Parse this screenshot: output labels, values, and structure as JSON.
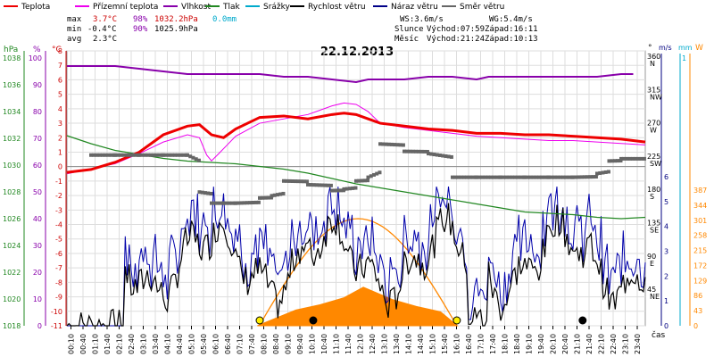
{
  "chart_data": {
    "type": "line",
    "title": "22.12.2013",
    "legend": [
      {
        "label": "Teplota",
        "color": "#ee0000"
      },
      {
        "label": "Přízemní teplota",
        "color": "#ee00ee"
      },
      {
        "label": "Vlhkost",
        "color": "#8800aa"
      },
      {
        "label": "Tlak",
        "color": "#228822"
      },
      {
        "label": "Srážky",
        "color": "#00aacc"
      },
      {
        "label": "Rychlost větru",
        "color": "#000000"
      },
      {
        "label": "Náraz větru",
        "color": "#000088"
      },
      {
        "label": "Směr větru",
        "color": "#666666"
      }
    ],
    "stats": {
      "max_label": "max",
      "min_label": "min",
      "avg_label": "avg",
      "max_temp": "3.7°C",
      "min_temp": "-0.4°C",
      "avg_temp": "2.3°C",
      "max_hum": "98%",
      "min_hum": "90%",
      "max_press": "1032.2hPa",
      "min_press": "1025.9hPa",
      "rain": "0.0mm"
    },
    "info": {
      "ws": "WS:3.6m/s",
      "wg": "WG:5.4m/s",
      "sun_label": "Slunce",
      "sunrise": "Východ:07:59",
      "sunset": "Západ:16:11",
      "moon_label": "Měsíc",
      "moonrise": "Východ:21:24",
      "moonset": "Západ:10:13"
    },
    "axis_units": {
      "hpa": "hPa",
      "pct": "%",
      "degc": "°C",
      "deg": "°",
      "ms": "m/s",
      "mm": "mm",
      "w": "W",
      "time": "čas"
    },
    "axes": {
      "pressure_ticks": [
        1018,
        1020,
        1022,
        1024,
        1026,
        1028,
        1030,
        1032,
        1034,
        1036,
        1038
      ],
      "humidity_ticks": [
        0,
        10,
        20,
        30,
        40,
        50,
        60,
        70,
        80,
        90,
        100
      ],
      "temp_ticks": [
        -11,
        -10,
        -9,
        -8,
        -7,
        -6,
        -5,
        -4,
        -3,
        -2,
        -1,
        0,
        1,
        2,
        3,
        4,
        5,
        6,
        7,
        8
      ],
      "direction_ticks": [
        {
          "deg": "360",
          "dir": "N"
        },
        {
          "deg": "315",
          "dir": "NW"
        },
        {
          "deg": "270",
          "dir": "W"
        },
        {
          "deg": "225",
          "dir": "SW"
        },
        {
          "deg": "180",
          "dir": "S"
        },
        {
          "deg": "135",
          "dir": "SE"
        },
        {
          "deg": "90",
          "dir": "E"
        },
        {
          "deg": "45",
          "dir": "NE"
        }
      ],
      "wind_ticks": [
        0,
        1,
        2,
        3,
        4,
        5,
        6
      ],
      "rain_top": "1",
      "solar_ticks": [
        0,
        43,
        86,
        129,
        172,
        215,
        258,
        301,
        344,
        387
      ],
      "time_ticks": [
        "00:10",
        "00:40",
        "01:10",
        "01:40",
        "02:10",
        "02:40",
        "03:10",
        "03:40",
        "04:10",
        "04:40",
        "05:10",
        "05:40",
        "06:10",
        "06:40",
        "07:10",
        "07:40",
        "08:10",
        "08:40",
        "09:10",
        "09:40",
        "10:10",
        "10:40",
        "11:10",
        "11:40",
        "12:10",
        "12:40",
        "13:10",
        "13:40",
        "14:10",
        "14:40",
        "15:10",
        "15:40",
        "16:10",
        "16:40",
        "17:10",
        "17:40",
        "18:10",
        "18:40",
        "19:10",
        "19:40",
        "20:10",
        "20:40",
        "21:10",
        "21:40",
        "22:10",
        "22:40",
        "23:10",
        "23:40"
      ]
    },
    "x_range_hours": [
      0,
      24
    ],
    "series": [
      {
        "name": "Teplota",
        "unit": "°C",
        "x": [
          0,
          1,
          2,
          3,
          3.5,
          4,
          5,
          5.5,
          6,
          6.5,
          7,
          8,
          9,
          10,
          11,
          11.5,
          12,
          12.5,
          13,
          14,
          15,
          16,
          17,
          18,
          19,
          20,
          21,
          22,
          23,
          24
        ],
        "values": [
          -0.4,
          -0.2,
          0.3,
          1.0,
          1.6,
          2.2,
          2.8,
          2.9,
          2.2,
          2.0,
          2.6,
          3.4,
          3.5,
          3.3,
          3.6,
          3.7,
          3.6,
          3.3,
          3.0,
          2.8,
          2.6,
          2.5,
          2.3,
          2.3,
          2.2,
          2.2,
          2.1,
          2.0,
          1.9,
          1.7
        ]
      },
      {
        "name": "Přízemní teplota",
        "unit": "°C",
        "x": [
          0,
          2,
          3,
          4,
          5,
          5.5,
          5.8,
          6,
          6.3,
          7,
          8,
          9,
          10,
          11,
          11.5,
          12,
          12.5,
          13,
          14,
          15,
          16,
          17,
          18,
          19,
          20,
          21,
          22,
          23,
          24
        ],
        "values": [
          -0.5,
          0.2,
          0.9,
          1.7,
          2.2,
          2.0,
          0.8,
          0.4,
          0.9,
          2.1,
          3.0,
          3.3,
          3.6,
          4.2,
          4.4,
          4.3,
          3.8,
          3.0,
          2.7,
          2.5,
          2.3,
          2.1,
          2.0,
          1.9,
          1.8,
          1.8,
          1.7,
          1.6,
          1.5
        ]
      },
      {
        "name": "Vlhkost",
        "unit": "%",
        "x": [
          0,
          2,
          3,
          4,
          5,
          6,
          7,
          8,
          9,
          10,
          11,
          12,
          12.5,
          13,
          14,
          15,
          16,
          17,
          17.5,
          18,
          19,
          20,
          21,
          22,
          23,
          23.5
        ],
        "values": [
          97,
          97,
          96,
          95,
          94,
          94,
          94,
          94,
          93,
          93,
          92,
          91,
          92,
          92,
          92,
          93,
          93,
          92,
          93,
          93,
          93,
          93,
          93,
          93,
          94,
          94
        ]
      },
      {
        "name": "Tlak",
        "unit": "hPa",
        "x": [
          0,
          1,
          2,
          3,
          4,
          5,
          6,
          7,
          8,
          9,
          10,
          11,
          12,
          13,
          14,
          15,
          16,
          17,
          18,
          19,
          20,
          21,
          22,
          23,
          24
        ],
        "values": [
          1032.2,
          1031.6,
          1031.1,
          1030.8,
          1030.5,
          1030.3,
          1030.2,
          1030.1,
          1029.9,
          1029.7,
          1029.4,
          1029.0,
          1028.6,
          1028.3,
          1028.0,
          1027.7,
          1027.4,
          1027.1,
          1026.8,
          1026.5,
          1026.4,
          1026.3,
          1026.1,
          1026.0,
          1026.1
        ]
      },
      {
        "name": "Srážky",
        "unit": "mm",
        "values": [
          0.0
        ]
      },
      {
        "name": "Rychlost větru",
        "unit": "m/s",
        "mean": 3.6
      },
      {
        "name": "Náraz větru",
        "unit": "m/s",
        "max": 5.4
      },
      {
        "name": "Směr větru",
        "unit": "°",
        "x": [
          1,
          2,
          3,
          4,
          5,
          5.5,
          6,
          6.5,
          7,
          8,
          8.5,
          9,
          10,
          11,
          11.5,
          12,
          12.5,
          13,
          14,
          15,
          16,
          17,
          18,
          19,
          20,
          21,
          22,
          22.5,
          23,
          24
        ],
        "values": [
          230,
          230,
          230,
          230,
          230,
          180,
          165,
          165,
          165,
          172,
          175,
          195,
          190,
          182,
          184,
          195,
          200,
          245,
          235,
          232,
          200,
          200,
          200,
          200,
          200,
          200,
          205,
          222,
          225,
          225
        ]
      }
    ],
    "solar_radiation": {
      "unit": "W",
      "x": [
        7.9,
        9.5,
        10.5,
        11.5,
        12.3,
        13.5,
        14.5,
        15.5,
        16.2
      ],
      "values": [
        0,
        45,
        60,
        80,
        110,
        75,
        55,
        40,
        0
      ]
    },
    "sun_curve_peak_hour": 12.1,
    "sun_markers": [
      {
        "hour": "08:00"
      },
      {
        "hour": "16:11"
      }
    ],
    "moon_markers": [
      {
        "hour": "10:13"
      },
      {
        "hour": "21:24"
      }
    ]
  }
}
